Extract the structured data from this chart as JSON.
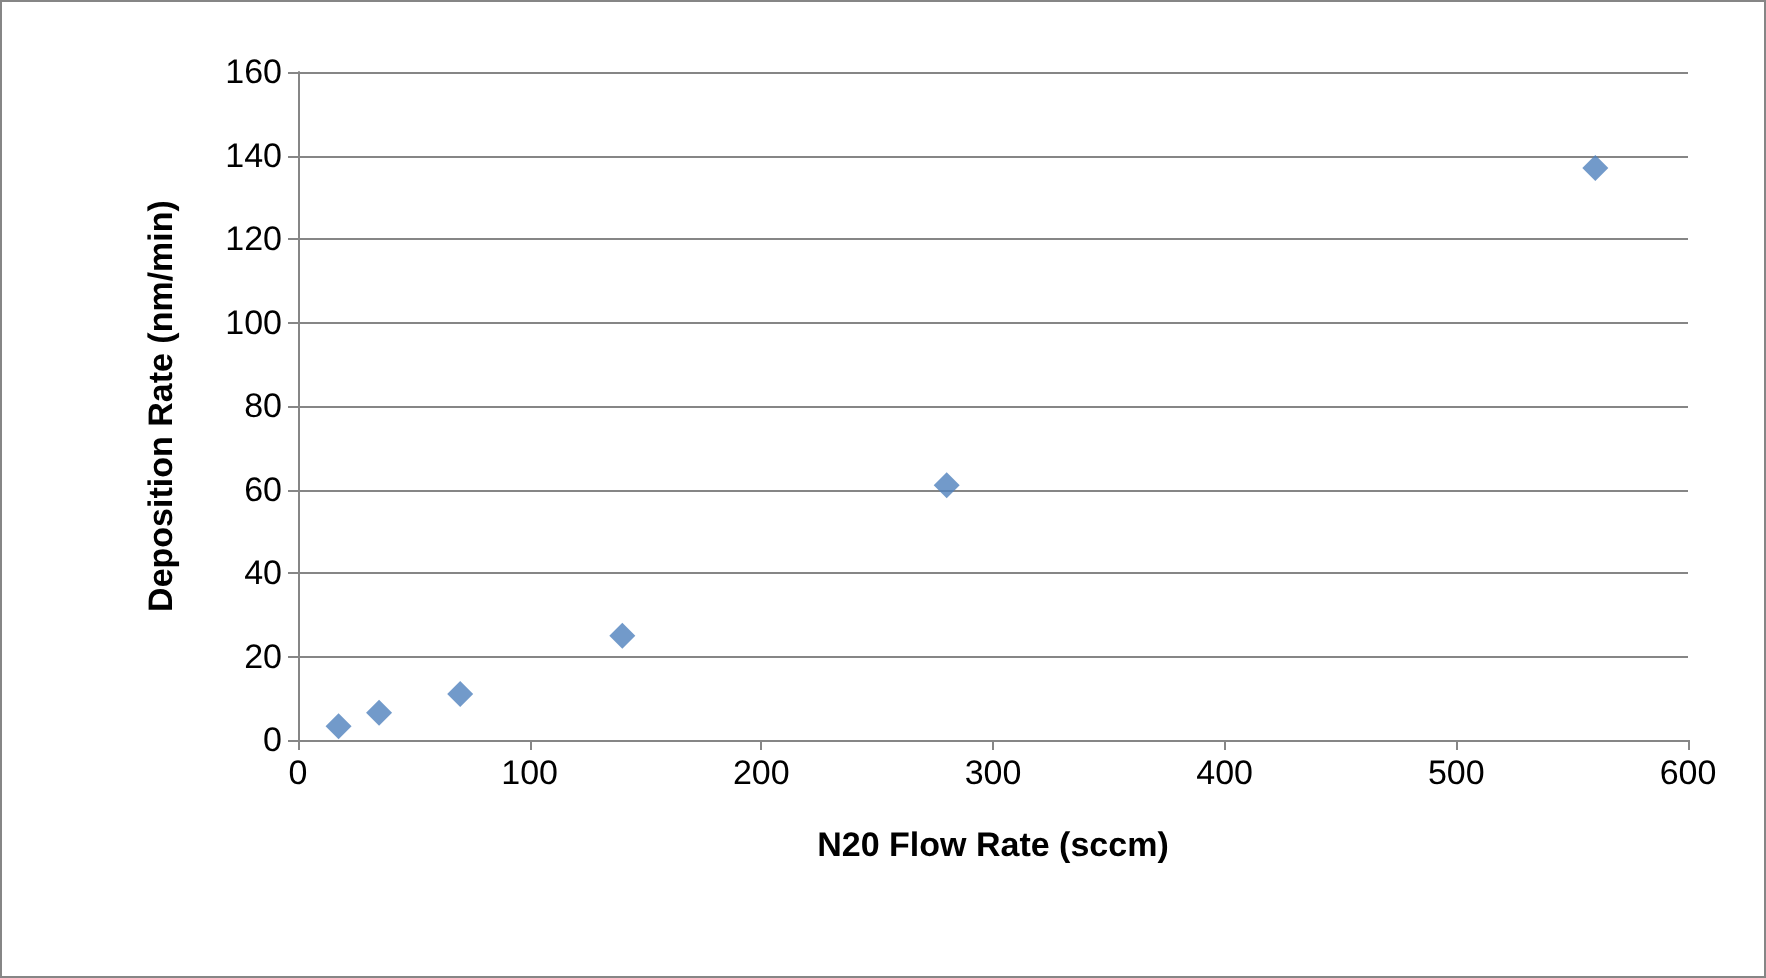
{
  "chart_data": {
    "type": "scatter",
    "xlabel": "N20 Flow Rate (sccm)",
    "ylabel": "Deposition Rate (nm/min)",
    "x": [
      17.5,
      35,
      70,
      140,
      280,
      560
    ],
    "series": [
      {
        "color": "#4f81bd",
        "values": [
          3.3,
          6.5,
          11,
          25,
          61,
          137
        ]
      }
    ],
    "xlim": [
      0,
      600
    ],
    "xticks": [
      0,
      100,
      200,
      300,
      400,
      500,
      600
    ],
    "ylim": [
      0,
      160
    ],
    "yticks": [
      0,
      20,
      40,
      60,
      80,
      100,
      120,
      140,
      160
    ],
    "grid": "y",
    "marker": "diamond"
  }
}
